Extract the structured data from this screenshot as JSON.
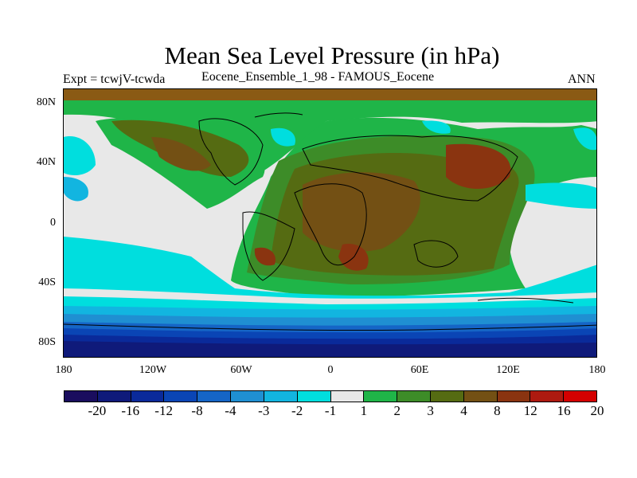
{
  "title": "Mean Sea Level Pressure (in hPa)",
  "left_label": "Expt = tcwjV-tcwda",
  "center_label": "Eocene_Ensemble_1_98 - FAMOUS_Eocene",
  "right_label": "ANN",
  "y_ticks": [
    "80N",
    "40N",
    "0",
    "40S",
    "80S"
  ],
  "x_ticks": [
    "180",
    "120W",
    "60W",
    "0",
    "60E",
    "120E",
    "180"
  ],
  "colorbar_labels": [
    "-20",
    "-16",
    "-12",
    "-8",
    "-4",
    "-3",
    "-2",
    "-1",
    "1",
    "2",
    "3",
    "4",
    "8",
    "12",
    "16",
    "20"
  ],
  "colors": {
    "levels": [
      "#1a0d5e",
      "#0f1a7a",
      "#0a2a9a",
      "#0a45b5",
      "#1565c6",
      "#1f8fd2",
      "#12b5e0",
      "#00dede",
      "#e8e8e8",
      "#1fb548",
      "#3d8c28",
      "#556b12",
      "#735014",
      "#8a3410",
      "#ad1a10",
      "#d40000"
    ],
    "land_outline": "#000000"
  }
}
